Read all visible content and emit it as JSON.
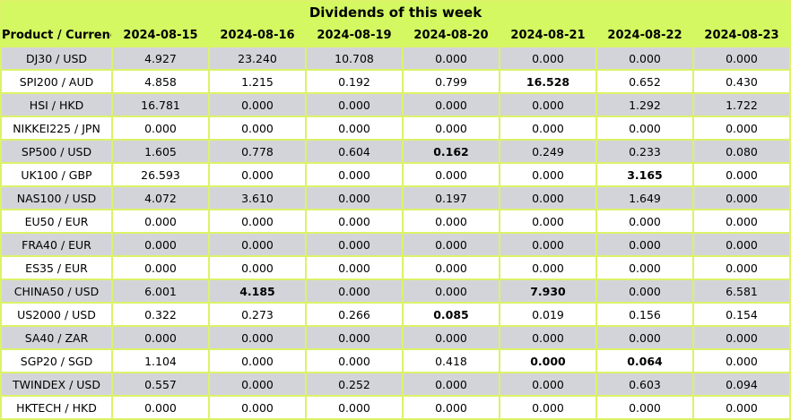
{
  "colors": {
    "header_bg": "#d3f861",
    "grid_line": "#dcf268",
    "alt_row_bg": "#d3d4da",
    "row_bg": "#ffffff",
    "text": "#000000"
  },
  "chart_data": {
    "type": "table",
    "title": "Dividends of this week",
    "product_header": "Product / Currency",
    "date_headers": [
      "2024-08-15",
      "2024-08-16",
      "2024-08-19",
      "2024-08-20",
      "2024-08-21",
      "2024-08-22",
      "2024-08-23"
    ],
    "rows": [
      {
        "product": "DJ30 / USD",
        "values": [
          "4.927",
          "23.240",
          "10.708",
          "0.000",
          "0.000",
          "0.000",
          "0.000"
        ],
        "bold_cols": []
      },
      {
        "product": "SPI200 / AUD",
        "values": [
          "4.858",
          "1.215",
          "0.192",
          "0.799",
          "16.528",
          "0.652",
          "0.430"
        ],
        "bold_cols": [
          4
        ]
      },
      {
        "product": "HSI / HKD",
        "values": [
          "16.781",
          "0.000",
          "0.000",
          "0.000",
          "0.000",
          "1.292",
          "1.722"
        ],
        "bold_cols": []
      },
      {
        "product": "NIKKEI225 / JPN",
        "values": [
          "0.000",
          "0.000",
          "0.000",
          "0.000",
          "0.000",
          "0.000",
          "0.000"
        ],
        "bold_cols": []
      },
      {
        "product": "SP500 / USD",
        "values": [
          "1.605",
          "0.778",
          "0.604",
          "0.162",
          "0.249",
          "0.233",
          "0.080"
        ],
        "bold_cols": [
          3
        ]
      },
      {
        "product": "UK100 / GBP",
        "values": [
          "26.593",
          "0.000",
          "0.000",
          "0.000",
          "0.000",
          "3.165",
          "0.000"
        ],
        "bold_cols": [
          5
        ]
      },
      {
        "product": "NAS100 / USD",
        "values": [
          "4.072",
          "3.610",
          "0.000",
          "0.197",
          "0.000",
          "1.649",
          "0.000"
        ],
        "bold_cols": []
      },
      {
        "product": "EU50 / EUR",
        "values": [
          "0.000",
          "0.000",
          "0.000",
          "0.000",
          "0.000",
          "0.000",
          "0.000"
        ],
        "bold_cols": []
      },
      {
        "product": "FRA40 / EUR",
        "values": [
          "0.000",
          "0.000",
          "0.000",
          "0.000",
          "0.000",
          "0.000",
          "0.000"
        ],
        "bold_cols": []
      },
      {
        "product": "ES35 / EUR",
        "values": [
          "0.000",
          "0.000",
          "0.000",
          "0.000",
          "0.000",
          "0.000",
          "0.000"
        ],
        "bold_cols": []
      },
      {
        "product": "CHINA50 / USD",
        "values": [
          "6.001",
          "4.185",
          "0.000",
          "0.000",
          "7.930",
          "0.000",
          "6.581"
        ],
        "bold_cols": [
          1,
          4
        ]
      },
      {
        "product": "US2000 / USD",
        "values": [
          "0.322",
          "0.273",
          "0.266",
          "0.085",
          "0.019",
          "0.156",
          "0.154"
        ],
        "bold_cols": [
          3
        ]
      },
      {
        "product": "SA40 / ZAR",
        "values": [
          "0.000",
          "0.000",
          "0.000",
          "0.000",
          "0.000",
          "0.000",
          "0.000"
        ],
        "bold_cols": []
      },
      {
        "product": "SGP20 / SGD",
        "values": [
          "1.104",
          "0.000",
          "0.000",
          "0.418",
          "0.000",
          "0.064",
          "0.000"
        ],
        "bold_cols": [
          4,
          5
        ]
      },
      {
        "product": "TWINDEX / USD",
        "values": [
          "0.557",
          "0.000",
          "0.252",
          "0.000",
          "0.000",
          "0.603",
          "0.094"
        ],
        "bold_cols": []
      },
      {
        "product": "HKTECH / HKD",
        "values": [
          "0.000",
          "0.000",
          "0.000",
          "0.000",
          "0.000",
          "0.000",
          "0.000"
        ],
        "bold_cols": []
      }
    ]
  }
}
